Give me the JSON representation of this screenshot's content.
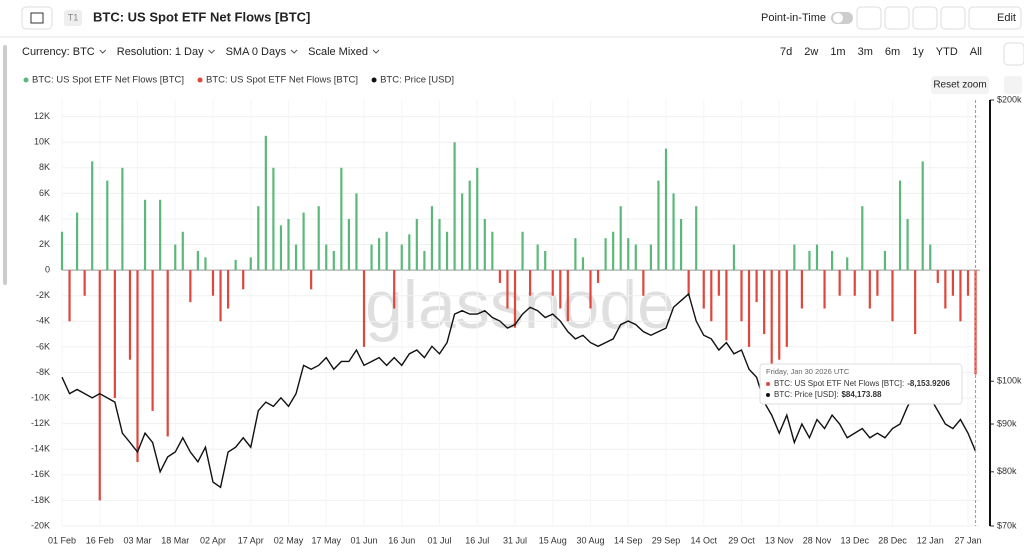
{
  "header": {
    "badge": "T1",
    "title": "BTC: US Spot ETF Net Flows [BTC]",
    "point_in_time": "Point-in-Time",
    "edit": "Edit"
  },
  "controls": [
    "Currency: BTC",
    "Resolution: 1 Day",
    "SMA 0 Days",
    "Scale Mixed"
  ],
  "ranges": [
    "7d",
    "2w",
    "1m",
    "3m",
    "6m",
    "1y",
    "YTD",
    "All"
  ],
  "reset_zoom": "Reset zoom",
  "watermark": "glassnode",
  "tooltip": {
    "date": "Friday, Jan 30 2026 UTC",
    "rows": [
      {
        "label": "BTC: US Spot ETF Net Flows [BTC]:",
        "value": "-8,153.9206"
      },
      {
        "label": "BTC: Price [USD]:",
        "value": "$84,173.88"
      }
    ]
  },
  "chart_data": {
    "type": "bar",
    "categories": [
      "01 Feb",
      null,
      null,
      null,
      null,
      "16 Feb",
      null,
      null,
      null,
      null,
      "03 Mar",
      null,
      null,
      null,
      null,
      "18 Mar",
      null,
      null,
      null,
      null,
      "02 Apr",
      null,
      null,
      null,
      null,
      "17 Apr",
      null,
      null,
      null,
      null,
      "02 May",
      null,
      null,
      null,
      null,
      "17 May",
      null,
      null,
      null,
      null,
      "01 Jun",
      null,
      null,
      null,
      null,
      "16 Jun",
      null,
      null,
      null,
      null,
      "01 Jul",
      null,
      null,
      null,
      null,
      "16 Jul",
      null,
      null,
      null,
      null,
      "31 Jul",
      null,
      null,
      null,
      null,
      "15 Aug",
      null,
      null,
      null,
      null,
      "30 Aug",
      null,
      null,
      null,
      null,
      "14 Sep",
      null,
      null,
      null,
      null,
      "29 Sep",
      null,
      null,
      null,
      null,
      "14 Oct",
      null,
      null,
      null,
      null,
      "29 Oct",
      null,
      null,
      null,
      null,
      "13 Nov",
      null,
      null,
      null,
      null,
      "28 Nov",
      null,
      null,
      null,
      null,
      "13 Dec",
      null,
      null,
      null,
      null,
      "28 Dec",
      null,
      null,
      null,
      null,
      "12 Jan",
      null,
      null,
      null,
      null,
      "27 Jan",
      null
    ],
    "series": [
      {
        "name": "BTC: US Spot ETF Net Flows [BTC]",
        "color": "#5cb87a",
        "values": [
          3000,
          null,
          4500,
          null,
          8500,
          null,
          7000,
          null,
          8000,
          null,
          null,
          5500,
          null,
          5500,
          null,
          2000,
          3000,
          null,
          1500,
          1000,
          null,
          null,
          null,
          800,
          null,
          1000,
          5000,
          10500,
          8000,
          3500,
          4000,
          2000,
          4500,
          null,
          5000,
          2000,
          1500,
          8000,
          4000,
          6000,
          null,
          2000,
          2500,
          3000,
          null,
          2000,
          2800,
          4000,
          1500,
          5000,
          4000,
          3000,
          10000,
          6000,
          7000,
          8000,
          4000,
          3000,
          null,
          null,
          null,
          3000,
          null,
          2000,
          1500,
          null,
          null,
          null,
          2500,
          1000,
          null,
          null,
          2500,
          3000,
          5000,
          2500,
          2000,
          null,
          2000,
          7000,
          9500,
          6000,
          4000,
          null,
          5000,
          null,
          null,
          null,
          null,
          2000,
          null,
          null,
          null,
          null,
          null,
          null,
          null,
          2000,
          null,
          1500,
          2000,
          null,
          1500,
          null,
          1000,
          null,
          5000,
          null,
          null,
          1500,
          null,
          7000,
          4000,
          null,
          8500,
          2000,
          null,
          null,
          null,
          null,
          null,
          null
        ]
      },
      {
        "name": "BTC: US Spot ETF Net Flows [BTC]",
        "color": "#e0463c",
        "values": [
          null,
          -4000,
          null,
          -2000,
          null,
          -18000,
          null,
          -10000,
          null,
          -7000,
          -15000,
          null,
          -11000,
          null,
          -13000,
          null,
          null,
          -2500,
          null,
          null,
          -2000,
          -4000,
          -3000,
          null,
          -1500,
          null,
          null,
          null,
          null,
          null,
          null,
          null,
          null,
          -1500,
          null,
          null,
          null,
          null,
          null,
          null,
          -6000,
          null,
          null,
          null,
          -3000,
          null,
          null,
          null,
          null,
          null,
          null,
          null,
          null,
          null,
          null,
          null,
          null,
          null,
          -1000,
          -3000,
          -4500,
          null,
          -2000,
          null,
          null,
          -2000,
          -3000,
          -4000,
          null,
          null,
          -3000,
          -1000,
          null,
          null,
          null,
          null,
          null,
          -2000,
          null,
          null,
          null,
          null,
          null,
          -2000,
          null,
          -3000,
          -4000,
          -2000,
          -5500,
          null,
          -4000,
          -6000,
          -2500,
          -5000,
          -8000,
          -7000,
          -6000,
          null,
          -3000,
          null,
          null,
          -3000,
          null,
          -2000,
          null,
          -2000,
          null,
          -3000,
          -2000,
          null,
          -4000,
          null,
          null,
          -5000,
          null,
          null,
          -1000,
          -3000,
          -2000,
          -4000,
          -2000,
          -8153.9206
        ]
      },
      {
        "name": "BTC: Price [USD]",
        "color": "#111111",
        "axis": "y2",
        "values": [
          101000,
          97000,
          98000,
          97000,
          96000,
          97000,
          96000,
          95000,
          88000,
          86000,
          84000,
          88000,
          86000,
          80000,
          83000,
          84000,
          87000,
          84000,
          82000,
          85000,
          78000,
          77000,
          84000,
          85000,
          87000,
          85000,
          93000,
          95000,
          94000,
          96000,
          94000,
          97000,
          104000,
          103000,
          104000,
          106000,
          103000,
          105000,
          105000,
          108000,
          104000,
          105000,
          106000,
          104000,
          106000,
          104000,
          107000,
          108000,
          106000,
          109000,
          107000,
          110000,
          118000,
          119000,
          118000,
          118000,
          119000,
          117000,
          116000,
          114000,
          115000,
          118000,
          120000,
          119000,
          117000,
          118000,
          116000,
          113000,
          111000,
          112000,
          110000,
          109000,
          110000,
          111000,
          115000,
          116000,
          115000,
          113000,
          112000,
          113000,
          114000,
          120000,
          122000,
          124000,
          116000,
          112000,
          111000,
          108000,
          110000,
          107000,
          108000,
          103000,
          101000,
          95000,
          92000,
          88000,
          92000,
          86000,
          90000,
          87000,
          91000,
          89000,
          92000,
          90000,
          87000,
          88000,
          89000,
          87000,
          88000,
          87000,
          89000,
          90000,
          94000,
          97000,
          95000,
          96000,
          93000,
          90000,
          89000,
          91000,
          88000,
          84173.88
        ]
      }
    ],
    "ylim": [
      -20000,
      13300
    ],
    "yticks": [
      {
        "value": -20000,
        "label": "-20K"
      },
      {
        "value": -18000,
        "label": "-18K"
      },
      {
        "value": -16000,
        "label": "-16K"
      },
      {
        "value": -14000,
        "label": "-14K"
      },
      {
        "value": -12000,
        "label": "-12K"
      },
      {
        "value": -10000,
        "label": "-10K"
      },
      {
        "value": -8000,
        "label": "-8K"
      },
      {
        "value": -6000,
        "label": "-6K"
      },
      {
        "value": -4000,
        "label": "-4K"
      },
      {
        "value": -2000,
        "label": "-2K"
      },
      0,
      {
        "value": 2000,
        "label": "2K"
      },
      {
        "value": 4000,
        "label": "4K"
      },
      {
        "value": 6000,
        "label": "6K"
      },
      {
        "value": 8000,
        "label": "8K"
      },
      {
        "value": 10000,
        "label": "10K"
      },
      {
        "value": 12000,
        "label": "12K"
      }
    ],
    "y2lim": [
      70000,
      200000
    ],
    "y2log": true,
    "y2ticks": [
      {
        "value": 70000,
        "label": "$70k"
      },
      {
        "value": 80000,
        "label": "$80k"
      },
      {
        "value": 90000,
        "label": "$90k"
      },
      {
        "value": 100000,
        "label": "$100k"
      },
      {
        "value": 200000,
        "label": "$200k"
      }
    ],
    "grid": true
  }
}
